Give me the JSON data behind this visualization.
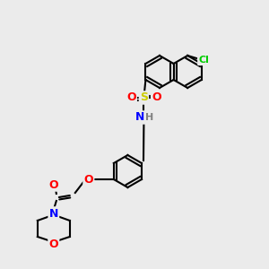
{
  "bg_color": "#ebebeb",
  "bond_color": "#000000",
  "bond_width": 1.5,
  "atom_colors": {
    "O": "#ff0000",
    "N": "#0000ff",
    "S": "#cccc00",
    "Cl": "#00cc00",
    "C": "#000000",
    "H": "#808080"
  }
}
